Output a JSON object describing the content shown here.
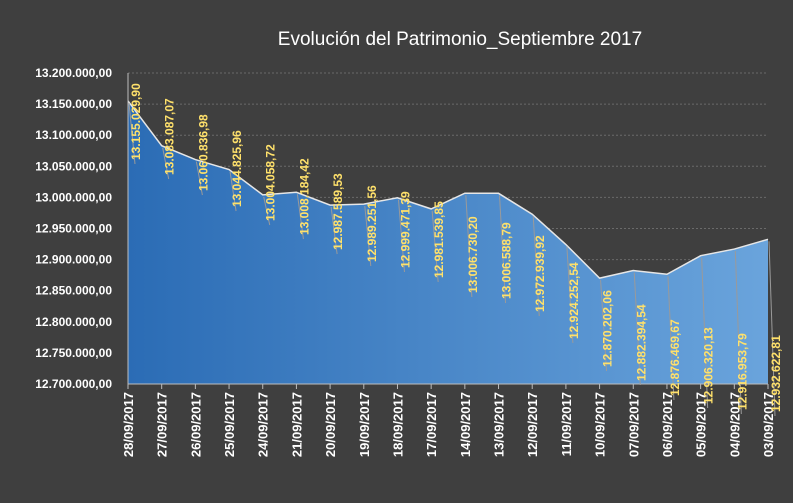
{
  "chart_data": {
    "type": "area",
    "title": "Evolución del Patrimonio_Septiembre 2017",
    "xlabel": "",
    "ylabel": "",
    "ylim": [
      12700000,
      13200000
    ],
    "y_ticks": [
      "12.700.000,00",
      "12.750.000,00",
      "12.800.000,00",
      "12.850.000,00",
      "12.900.000,00",
      "12.950.000,00",
      "13.000.000,00",
      "13.050.000,00",
      "13.100.000,00",
      "13.150.000,00",
      "13.200.000,00"
    ],
    "grid": true,
    "legend": "none",
    "colors": {
      "fill_dark": "#2b6cb5",
      "fill_light": "#6aa4dc",
      "line": "#e6e6e6",
      "label": "#ffe16b",
      "background": "#3f3f3f"
    },
    "categories": [
      "28/09/2017",
      "27/09/2017",
      "26/09/2017",
      "25/09/2017",
      "24/09/2017",
      "21/09/2017",
      "20/09/2017",
      "19/09/2017",
      "18/09/2017",
      "17/09/2017",
      "14/09/2017",
      "13/09/2017",
      "12/09/2017",
      "11/09/2017",
      "10/09/2017",
      "07/09/2017",
      "06/09/2017",
      "05/09/2017",
      "04/09/2017",
      "03/09/2017"
    ],
    "values": [
      13155029.9,
      13083087.07,
      13060836.98,
      13044825.96,
      13004058.72,
      13008184.42,
      12987589.53,
      12989251.56,
      12999471.39,
      12981539.85,
      13006730.2,
      13006588.79,
      12972939.92,
      12924252.54,
      12870202.06,
      12882394.54,
      12876469.67,
      12906320.13,
      12916953.79,
      12932622.81
    ],
    "data_labels": [
      "13.155.029,90",
      "13.083.087,07",
      "13.060.836,98",
      "13.044.825,96",
      "13.004.058,72",
      "13.008.184,42",
      "12.987.589,53",
      "12.989.251,56",
      "12.999.471,39",
      "12.981.539,85",
      "13.006.730,20",
      "13.006.588,79",
      "12.972.939,92",
      "12.924.252,54",
      "12.870.202,06",
      "12.882.394,54",
      "12.876.469,67",
      "12.906.320,13",
      "12.916.953,79",
      "12.932.622,81"
    ]
  }
}
